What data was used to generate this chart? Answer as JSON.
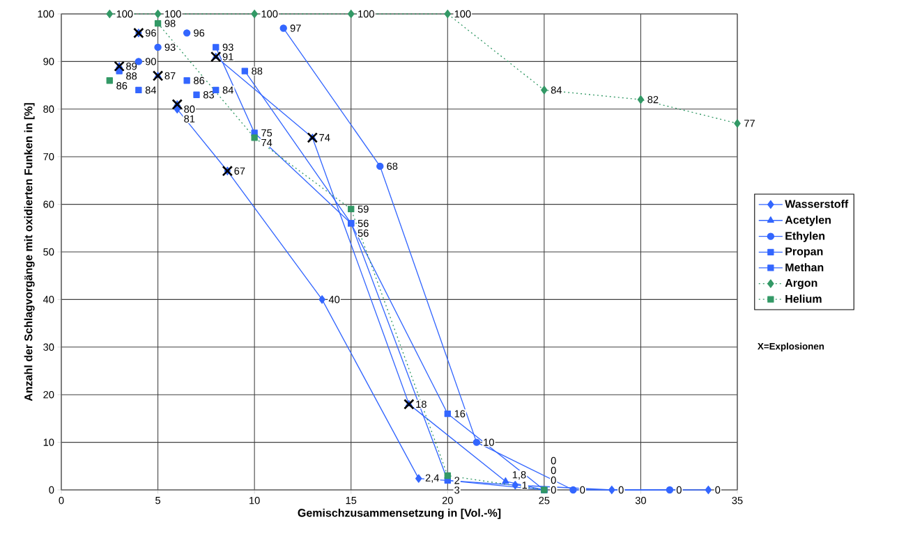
{
  "chart_data": {
    "type": "line",
    "xlabel": "Gemischzusammensetzung in [Vol.-%]",
    "ylabel": "Anzahl der Schlagvorgänge mit oxidierten Funken in [%]",
    "xlim": [
      0,
      35
    ],
    "xticks": [
      0,
      5,
      10,
      15,
      20,
      25,
      30,
      35
    ],
    "ylim": [
      0,
      100
    ],
    "yticks": [
      0,
      10,
      20,
      30,
      40,
      50,
      60,
      70,
      80,
      90,
      100
    ],
    "grid": true,
    "legend": "right",
    "annotations": [
      "X=Explosionen"
    ],
    "series": [
      {
        "name": "Wasserstoff",
        "color": "#3366ff",
        "marker": "diamond",
        "line_style": "solid",
        "x": [
          4,
          5,
          6,
          8.6,
          13.5,
          18.5,
          23.5,
          28.5,
          33.5
        ],
        "values": [
          96,
          null,
          80,
          67,
          40,
          2.4,
          1,
          0,
          0
        ],
        "value_labels": [
          "96",
          null,
          "80",
          "67",
          "40",
          "2,4",
          "1",
          "0",
          "0"
        ]
      },
      {
        "name": "Acetylen",
        "color": "#3366ff",
        "marker": "triangle",
        "line_style": "solid",
        "x": [
          3,
          3.5,
          5,
          5.5,
          6,
          7,
          8,
          13,
          18,
          23,
          25
        ],
        "values": [
          89,
          null,
          87,
          null,
          81,
          null,
          91,
          74,
          18,
          1.8,
          0
        ],
        "value_labels": [
          "89",
          null,
          "87",
          null,
          "81",
          null,
          "91",
          "74",
          "18",
          "1,8",
          "0"
        ]
      },
      {
        "name": "Ethylen",
        "color": "#3366ff",
        "marker": "circle",
        "line_style": "solid",
        "x": [
          4,
          4.5,
          5,
          5.5,
          6.5,
          9,
          11.5,
          16.5,
          21.5,
          26.5,
          31.5
        ],
        "values": [
          90,
          null,
          93,
          null,
          96,
          null,
          97,
          68,
          10,
          0,
          0
        ],
        "value_labels": [
          "90",
          null,
          "93",
          null,
          "96",
          null,
          "97",
          "68",
          "10",
          "0",
          "0"
        ]
      },
      {
        "name": "Propan",
        "color": "#3366ff",
        "marker": "square",
        "line_style": "solid",
        "x": [
          3,
          3.5,
          4,
          5,
          6.5,
          7,
          8,
          10,
          15,
          20,
          25
        ],
        "values": [
          88,
          null,
          84,
          null,
          86,
          null,
          93,
          75,
          56,
          16,
          0
        ],
        "value_labels": [
          "88",
          null,
          "84",
          null,
          "86",
          null,
          "93",
          "75",
          "56",
          "16",
          "0"
        ]
      },
      {
        "name": "Methan",
        "color": "#3366ff",
        "marker": "square",
        "line_style": "solid",
        "x": [
          7,
          7.5,
          8,
          9,
          9.5,
          15,
          20,
          25
        ],
        "values": [
          83,
          null,
          84,
          null,
          88,
          56,
          2,
          0
        ],
        "value_labels": [
          "83",
          null,
          "84",
          null,
          "88",
          "56",
          "2",
          "0"
        ]
      },
      {
        "name": "Argon",
        "color": "#339966",
        "marker": "diamond",
        "line_style": "dotted",
        "x": [
          2.5,
          5,
          10,
          15,
          20,
          25,
          30,
          35
        ],
        "values": [
          100,
          100,
          100,
          100,
          100,
          84,
          82,
          77
        ],
        "value_labels": [
          "100",
          "100",
          "100",
          "100",
          "100",
          "84",
          "82",
          "77"
        ]
      },
      {
        "name": "Helium",
        "color": "#339966",
        "marker": "square",
        "line_style": "dotted",
        "x": [
          2.5,
          3.5,
          5,
          10,
          15,
          20,
          25
        ],
        "values": [
          86,
          null,
          98,
          74,
          59,
          3,
          0
        ],
        "value_labels": [
          "86",
          null,
          "98",
          "74",
          "59",
          "3",
          "0"
        ]
      },
      {
        "type": "scatter",
        "color": "#000000",
        "marker": "cross",
        "x": [
          3,
          4,
          5,
          6,
          8,
          8.6,
          13,
          18
        ],
        "values": [
          89,
          96,
          87,
          81,
          91,
          67,
          74,
          18
        ]
      }
    ]
  }
}
